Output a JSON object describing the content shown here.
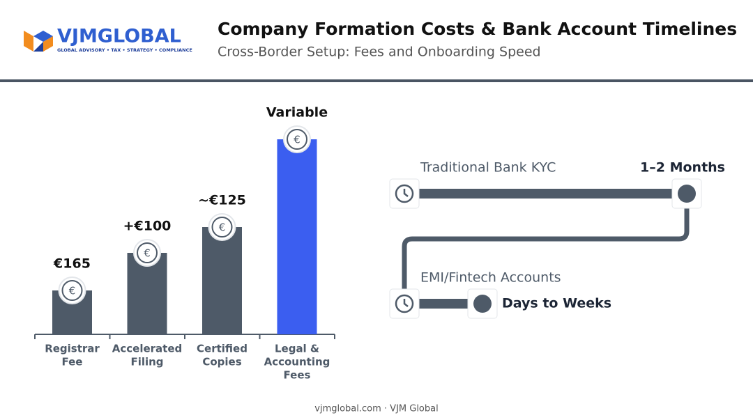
{
  "header": {
    "logo_name": "VJMGLOBAL",
    "logo_tagline": "GLOBAL ADVISORY • TAX • STRATEGY • COMPLIANCE",
    "title": "Company Formation Costs & Bank Account Timelines",
    "subtitle": "Cross-Border Setup: Fees and Onboarding Speed"
  },
  "cost_bars": [
    {
      "amount": "€165",
      "label": [
        "Registrar",
        "Fee"
      ]
    },
    {
      "amount": "+€100",
      "label": [
        "Accelerated",
        "Filing"
      ]
    },
    {
      "amount": "~€125",
      "label": [
        "Certified",
        "Copies"
      ]
    },
    {
      "amount": "Variable",
      "label": [
        "Legal &",
        "Accounting",
        "Fees"
      ]
    }
  ],
  "timelines": [
    {
      "label": "Traditional Bank KYC",
      "duration": "1–2 Months"
    },
    {
      "label": "EMI/Fintech Accounts",
      "duration": "Days to Weeks"
    }
  ],
  "footer": "vjmglobal.com · VJM Global"
}
